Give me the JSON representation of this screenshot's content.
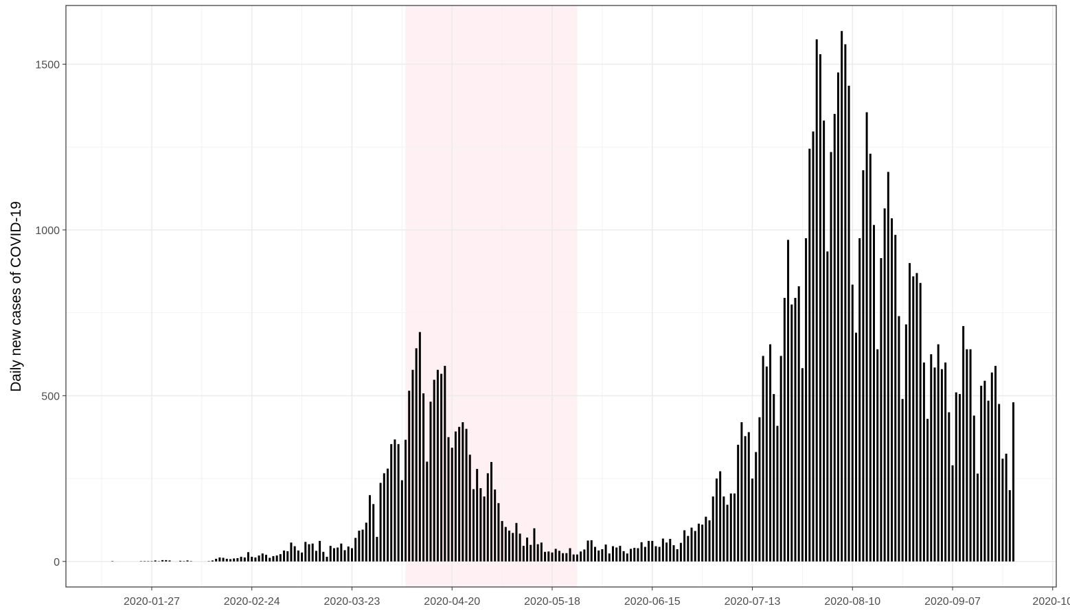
{
  "chart_data": {
    "type": "bar",
    "y_label": "Daily new cases of COVID-19",
    "color": "#000000",
    "grid": true,
    "shade": {
      "from": "2020-04-07",
      "to": "2020-05-25",
      "color": "#fff0f3"
    },
    "xlim": [
      "2020-01-03",
      "2020-10-06"
    ],
    "ylim": [
      -77,
      1677
    ],
    "xticks": [
      "2020-01-27",
      "2020-02-24",
      "2020-03-23",
      "2020-04-20",
      "2020-05-18",
      "2020-06-15",
      "2020-07-13",
      "2020-08-10",
      "2020-09-07",
      {
        "value": "2020-10-05",
        "label": "2020-10"
      }
    ],
    "yticks": [
      0,
      500,
      1000,
      1500
    ],
    "x": [
      "2020-01-16",
      "2020-01-17",
      "2020-01-18",
      "2020-01-19",
      "2020-01-20",
      "2020-01-21",
      "2020-01-22",
      "2020-01-23",
      "2020-01-24",
      "2020-01-25",
      "2020-01-26",
      "2020-01-27",
      "2020-01-28",
      "2020-01-29",
      "2020-01-30",
      "2020-01-31",
      "2020-02-01",
      "2020-02-02",
      "2020-02-03",
      "2020-02-04",
      "2020-02-05",
      "2020-02-06",
      "2020-02-07",
      "2020-02-08",
      "2020-02-09",
      "2020-02-10",
      "2020-02-11",
      "2020-02-12",
      "2020-02-13",
      "2020-02-14",
      "2020-02-15",
      "2020-02-16",
      "2020-02-17",
      "2020-02-18",
      "2020-02-19",
      "2020-02-20",
      "2020-02-21",
      "2020-02-22",
      "2020-02-23",
      "2020-02-24",
      "2020-02-25",
      "2020-02-26",
      "2020-02-27",
      "2020-02-28",
      "2020-02-29",
      "2020-03-01",
      "2020-03-02",
      "2020-03-03",
      "2020-03-04",
      "2020-03-05",
      "2020-03-06",
      "2020-03-07",
      "2020-03-08",
      "2020-03-09",
      "2020-03-10",
      "2020-03-11",
      "2020-03-12",
      "2020-03-13",
      "2020-03-14",
      "2020-03-15",
      "2020-03-16",
      "2020-03-17",
      "2020-03-18",
      "2020-03-19",
      "2020-03-20",
      "2020-03-21",
      "2020-03-22",
      "2020-03-23",
      "2020-03-24",
      "2020-03-25",
      "2020-03-26",
      "2020-03-27",
      "2020-03-28",
      "2020-03-29",
      "2020-03-30",
      "2020-03-31",
      "2020-04-01",
      "2020-04-02",
      "2020-04-03",
      "2020-04-04",
      "2020-04-05",
      "2020-04-06",
      "2020-04-07",
      "2020-04-08",
      "2020-04-09",
      "2020-04-10",
      "2020-04-11",
      "2020-04-12",
      "2020-04-13",
      "2020-04-14",
      "2020-04-15",
      "2020-04-16",
      "2020-04-17",
      "2020-04-18",
      "2020-04-19",
      "2020-04-20",
      "2020-04-21",
      "2020-04-22",
      "2020-04-23",
      "2020-04-24",
      "2020-04-25",
      "2020-04-26",
      "2020-04-27",
      "2020-04-28",
      "2020-04-29",
      "2020-04-30",
      "2020-05-01",
      "2020-05-02",
      "2020-05-03",
      "2020-05-04",
      "2020-05-05",
      "2020-05-06",
      "2020-05-07",
      "2020-05-08",
      "2020-05-09",
      "2020-05-10",
      "2020-05-11",
      "2020-05-12",
      "2020-05-13",
      "2020-05-14",
      "2020-05-15",
      "2020-05-16",
      "2020-05-17",
      "2020-05-18",
      "2020-05-19",
      "2020-05-20",
      "2020-05-21",
      "2020-05-22",
      "2020-05-23",
      "2020-05-24",
      "2020-05-25",
      "2020-05-26",
      "2020-05-27",
      "2020-05-28",
      "2020-05-29",
      "2020-05-30",
      "2020-05-31",
      "2020-06-01",
      "2020-06-02",
      "2020-06-03",
      "2020-06-04",
      "2020-06-05",
      "2020-06-06",
      "2020-06-07",
      "2020-06-08",
      "2020-06-09",
      "2020-06-10",
      "2020-06-11",
      "2020-06-12",
      "2020-06-13",
      "2020-06-14",
      "2020-06-15",
      "2020-06-16",
      "2020-06-17",
      "2020-06-18",
      "2020-06-19",
      "2020-06-20",
      "2020-06-21",
      "2020-06-22",
      "2020-06-23",
      "2020-06-24",
      "2020-06-25",
      "2020-06-26",
      "2020-06-27",
      "2020-06-28",
      "2020-06-29",
      "2020-06-30",
      "2020-07-01",
      "2020-07-02",
      "2020-07-03",
      "2020-07-04",
      "2020-07-05",
      "2020-07-06",
      "2020-07-07",
      "2020-07-08",
      "2020-07-09",
      "2020-07-10",
      "2020-07-11",
      "2020-07-12",
      "2020-07-13",
      "2020-07-14",
      "2020-07-15",
      "2020-07-16",
      "2020-07-17",
      "2020-07-18",
      "2020-07-19",
      "2020-07-20",
      "2020-07-21",
      "2020-07-22",
      "2020-07-23",
      "2020-07-24",
      "2020-07-25",
      "2020-07-26",
      "2020-07-27",
      "2020-07-28",
      "2020-07-29",
      "2020-07-30",
      "2020-07-31",
      "2020-08-01",
      "2020-08-02",
      "2020-08-03",
      "2020-08-04",
      "2020-08-05",
      "2020-08-06",
      "2020-08-07",
      "2020-08-08",
      "2020-08-09",
      "2020-08-10",
      "2020-08-11",
      "2020-08-12",
      "2020-08-13",
      "2020-08-14",
      "2020-08-15",
      "2020-08-16",
      "2020-08-17",
      "2020-08-18",
      "2020-08-19",
      "2020-08-20",
      "2020-08-21",
      "2020-08-22",
      "2020-08-23",
      "2020-08-24",
      "2020-08-25",
      "2020-08-26",
      "2020-08-27",
      "2020-08-28",
      "2020-08-29",
      "2020-08-30",
      "2020-08-31",
      "2020-09-01",
      "2020-09-02",
      "2020-09-03",
      "2020-09-04",
      "2020-09-05",
      "2020-09-06",
      "2020-09-07",
      "2020-09-08",
      "2020-09-09",
      "2020-09-10",
      "2020-09-11",
      "2020-09-12",
      "2020-09-13",
      "2020-09-14",
      "2020-09-15",
      "2020-09-16",
      "2020-09-17",
      "2020-09-18",
      "2020-09-19",
      "2020-09-20",
      "2020-09-21",
      "2020-09-22",
      "2020-09-23",
      "2020-09-24"
    ],
    "values": [
      1,
      0,
      0,
      0,
      0,
      0,
      0,
      0,
      1,
      1,
      1,
      1,
      3,
      1,
      4,
      4,
      3,
      0,
      0,
      2,
      1,
      3,
      1,
      0,
      0,
      0,
      0,
      1,
      3,
      8,
      12,
      11,
      8,
      7,
      9,
      10,
      14,
      12,
      28,
      14,
      12,
      18,
      24,
      20,
      11,
      16,
      18,
      22,
      33,
      31,
      57,
      46,
      33,
      27,
      59,
      52,
      54,
      32,
      62,
      29,
      14,
      47,
      40,
      42,
      54,
      34,
      45,
      40,
      71,
      93,
      96,
      117,
      200,
      173,
      74,
      237,
      266,
      280,
      354,
      368,
      354,
      245,
      367,
      515,
      578,
      643,
      692,
      507,
      301,
      482,
      548,
      578,
      566,
      590,
      375,
      343,
      392,
      406,
      420,
      400,
      322,
      218,
      279,
      221,
      196,
      266,
      300,
      217,
      176,
      122,
      104,
      93,
      86,
      116,
      84,
      47,
      72,
      50,
      100,
      52,
      57,
      29,
      30,
      27,
      38,
      32,
      25,
      25,
      40,
      21,
      21,
      30,
      36,
      63,
      64,
      44,
      33,
      37,
      51,
      24,
      46,
      42,
      47,
      31,
      24,
      38,
      41,
      40,
      58,
      44,
      62,
      62,
      46,
      44,
      69,
      57,
      68,
      49,
      37,
      56,
      94,
      77,
      102,
      92,
      114,
      111,
      135,
      124,
      196,
      250,
      272,
      196,
      171,
      205,
      205,
      352,
      420,
      378,
      390,
      250,
      330,
      435,
      620,
      588,
      655,
      505,
      409,
      620,
      795,
      970,
      775,
      795,
      830,
      583,
      975,
      1245,
      1297,
      1575,
      1530,
      1330,
      935,
      1235,
      1350,
      1475,
      1600,
      1560,
      1435,
      835,
      690,
      975,
      1180,
      1355,
      1230,
      1015,
      640,
      915,
      1065,
      1175,
      1035,
      985,
      740,
      490,
      715,
      900,
      860,
      870,
      840,
      600,
      430,
      625,
      585,
      655,
      580,
      600,
      450,
      290,
      510,
      505,
      710,
      640,
      640,
      440,
      265,
      530,
      545,
      485,
      570,
      590,
      475,
      310,
      325,
      215,
      480
    ]
  }
}
